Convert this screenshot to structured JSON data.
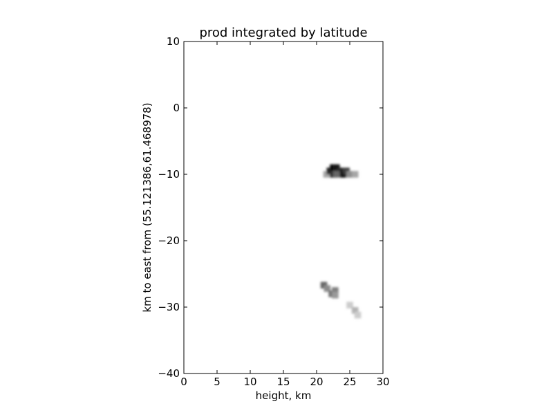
{
  "chart_data": {
    "type": "heatmap",
    "title": "prod integrated by latitude",
    "xlabel": "height, km",
    "ylabel": "km to east from (55.121386,61.468978)",
    "xlim": [
      0,
      30
    ],
    "ylim": [
      -40,
      10
    ],
    "xticks": [
      0,
      5,
      10,
      15,
      20,
      25,
      30
    ],
    "yticks": [
      10,
      0,
      -10,
      -20,
      -30,
      -40
    ],
    "colormap": "grayscale, white = 0, black = max",
    "grid": false,
    "legend": "none",
    "cells_note": "approximate blurred grayscale blobs; intensity 0-1",
    "cells": [
      {
        "x": 21.5,
        "y": -10.0,
        "intensity": 0.35
      },
      {
        "x": 22.0,
        "y": -9.5,
        "intensity": 0.85
      },
      {
        "x": 22.5,
        "y": -9.0,
        "intensity": 0.95
      },
      {
        "x": 23.0,
        "y": -9.0,
        "intensity": 0.9
      },
      {
        "x": 22.5,
        "y": -10.0,
        "intensity": 0.8
      },
      {
        "x": 23.5,
        "y": -9.5,
        "intensity": 0.85
      },
      {
        "x": 23.0,
        "y": -10.0,
        "intensity": 0.6
      },
      {
        "x": 24.0,
        "y": -10.0,
        "intensity": 0.9
      },
      {
        "x": 24.5,
        "y": -9.5,
        "intensity": 0.75
      },
      {
        "x": 25.0,
        "y": -10.0,
        "intensity": 0.45
      },
      {
        "x": 25.8,
        "y": -10.0,
        "intensity": 0.35
      },
      {
        "x": 21.1,
        "y": -26.7,
        "intensity": 0.6
      },
      {
        "x": 21.6,
        "y": -27.2,
        "intensity": 0.45
      },
      {
        "x": 22.3,
        "y": -28.0,
        "intensity": 0.55
      },
      {
        "x": 22.8,
        "y": -27.5,
        "intensity": 0.5
      },
      {
        "x": 22.8,
        "y": -28.2,
        "intensity": 0.4
      },
      {
        "x": 25.0,
        "y": -29.7,
        "intensity": 0.2
      },
      {
        "x": 25.8,
        "y": -30.5,
        "intensity": 0.3
      },
      {
        "x": 26.2,
        "y": -31.2,
        "intensity": 0.2
      }
    ]
  }
}
